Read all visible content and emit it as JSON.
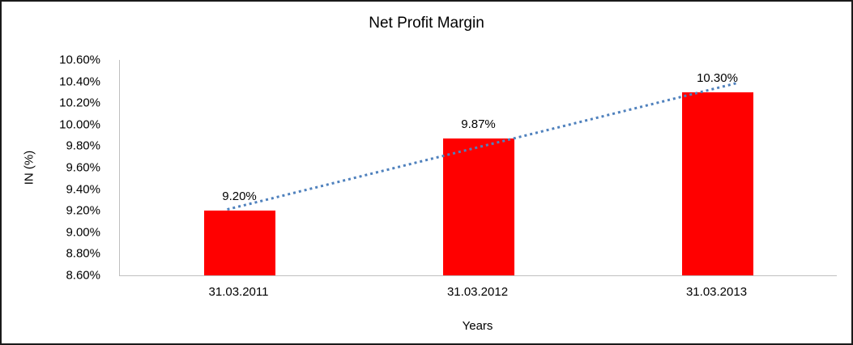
{
  "chart_data": {
    "type": "bar",
    "title": "Net Profit Margin",
    "xlabel": "Years",
    "ylabel": "IN (%)",
    "categories": [
      "31.03.2011",
      "31.03.2012",
      "31.03.2013"
    ],
    "values": [
      9.2,
      9.87,
      10.3
    ],
    "value_labels": [
      "9.20%",
      "9.87%",
      "10.30%"
    ],
    "ylim": [
      8.6,
      10.6
    ],
    "ytick_step": 0.2,
    "ytick_format": "percent-2-decimals",
    "grid": "off",
    "legend_position": "none",
    "bar_color": "#ff0000",
    "trendline": {
      "type": "linear",
      "style": "dotted",
      "color": "#4f81bd"
    }
  }
}
